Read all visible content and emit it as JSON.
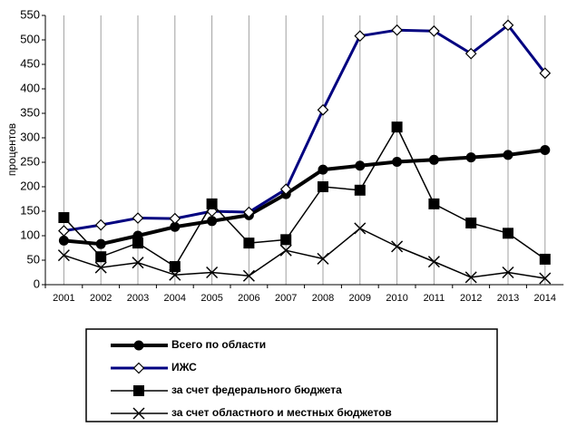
{
  "chart_data": {
    "type": "line",
    "y_label": "процентов",
    "categories": [
      "2001",
      "2002",
      "2003",
      "2004",
      "2005",
      "2006",
      "2007",
      "2008",
      "2009",
      "2010",
      "2011",
      "2012",
      "2013",
      "2014"
    ],
    "ylim": [
      0,
      550
    ],
    "yticks": [
      0,
      50,
      100,
      150,
      200,
      250,
      300,
      350,
      400,
      450,
      500,
      550
    ],
    "grid": "vertical",
    "legend": "bottom",
    "series": [
      {
        "name": "Всего по области",
        "color": "#000000",
        "marker": "circle",
        "line_width": 4,
        "values": [
          90,
          83,
          100,
          118,
          130,
          142,
          185,
          235,
          243,
          251,
          255,
          260,
          265,
          275
        ]
      },
      {
        "name": "ИЖС",
        "color": "#000080",
        "marker": "diamond",
        "line_width": 3,
        "values": [
          110,
          122,
          136,
          135,
          150,
          148,
          195,
          357,
          508,
          520,
          518,
          472,
          530,
          432
        ]
      },
      {
        "name": "за счет федерального бюджета",
        "color": "#000000",
        "marker": "square",
        "line_width": 1.5,
        "values": [
          137,
          57,
          85,
          37,
          165,
          85,
          92,
          200,
          193,
          322,
          165,
          126,
          105,
          52
        ]
      },
      {
        "name": "за счет областного и местных бюджетов",
        "color": "#000000",
        "marker": "x",
        "line_width": 1.5,
        "values": [
          60,
          35,
          45,
          20,
          25,
          18,
          70,
          53,
          115,
          78,
          47,
          15,
          25,
          13
        ]
      }
    ]
  }
}
